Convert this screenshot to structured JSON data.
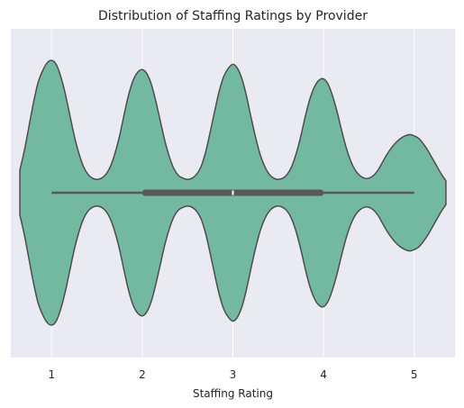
{
  "chart_data": {
    "type": "violin",
    "orientation": "horizontal",
    "title": "Distribution of Staffing Ratings by Provider",
    "xlabel": "Staffing Rating",
    "ylabel": "",
    "xticks": [
      1,
      2,
      3,
      4,
      5
    ],
    "xlim": [
      0.55,
      5.45
    ],
    "grid": true,
    "legend": "none",
    "series": [
      {
        "values_description_free": true,
        "min": 1,
        "q1": 2,
        "median": 3,
        "q3": 4,
        "max": 5,
        "density_profile": [
          [
            0.65,
            0.17
          ],
          [
            0.7,
            0.32
          ],
          [
            0.75,
            0.5
          ],
          [
            0.8,
            0.68
          ],
          [
            0.85,
            0.83
          ],
          [
            0.9,
            0.92
          ],
          [
            0.95,
            0.98
          ],
          [
            1.0,
            1.0
          ],
          [
            1.05,
            0.97
          ],
          [
            1.1,
            0.88
          ],
          [
            1.15,
            0.75
          ],
          [
            1.2,
            0.59
          ],
          [
            1.25,
            0.43
          ],
          [
            1.3,
            0.3
          ],
          [
            1.35,
            0.2
          ],
          [
            1.4,
            0.14
          ],
          [
            1.45,
            0.11
          ],
          [
            1.5,
            0.1
          ],
          [
            1.55,
            0.11
          ],
          [
            1.6,
            0.14
          ],
          [
            1.65,
            0.2
          ],
          [
            1.7,
            0.3
          ],
          [
            1.75,
            0.43
          ],
          [
            1.8,
            0.59
          ],
          [
            1.85,
            0.74
          ],
          [
            1.9,
            0.85
          ],
          [
            1.95,
            0.91
          ],
          [
            2.0,
            0.93
          ],
          [
            2.05,
            0.9
          ],
          [
            2.1,
            0.82
          ],
          [
            2.15,
            0.69
          ],
          [
            2.2,
            0.54
          ],
          [
            2.25,
            0.39
          ],
          [
            2.3,
            0.27
          ],
          [
            2.35,
            0.18
          ],
          [
            2.4,
            0.13
          ],
          [
            2.45,
            0.11
          ],
          [
            2.5,
            0.1
          ],
          [
            2.55,
            0.11
          ],
          [
            2.6,
            0.14
          ],
          [
            2.65,
            0.2
          ],
          [
            2.7,
            0.31
          ],
          [
            2.75,
            0.46
          ],
          [
            2.8,
            0.62
          ],
          [
            2.85,
            0.77
          ],
          [
            2.9,
            0.88
          ],
          [
            2.95,
            0.94
          ],
          [
            3.0,
            0.97
          ],
          [
            3.05,
            0.94
          ],
          [
            3.1,
            0.86
          ],
          [
            3.15,
            0.73
          ],
          [
            3.2,
            0.57
          ],
          [
            3.25,
            0.42
          ],
          [
            3.3,
            0.29
          ],
          [
            3.35,
            0.2
          ],
          [
            3.4,
            0.14
          ],
          [
            3.45,
            0.11
          ],
          [
            3.5,
            0.1
          ],
          [
            3.55,
            0.11
          ],
          [
            3.6,
            0.14
          ],
          [
            3.65,
            0.2
          ],
          [
            3.7,
            0.3
          ],
          [
            3.75,
            0.43
          ],
          [
            3.8,
            0.58
          ],
          [
            3.85,
            0.71
          ],
          [
            3.9,
            0.8
          ],
          [
            3.95,
            0.85
          ],
          [
            4.0,
            0.86
          ],
          [
            4.05,
            0.82
          ],
          [
            4.1,
            0.73
          ],
          [
            4.15,
            0.61
          ],
          [
            4.2,
            0.47
          ],
          [
            4.25,
            0.34
          ],
          [
            4.3,
            0.24
          ],
          [
            4.35,
            0.17
          ],
          [
            4.4,
            0.13
          ],
          [
            4.45,
            0.11
          ],
          [
            4.5,
            0.11
          ],
          [
            4.55,
            0.13
          ],
          [
            4.6,
            0.17
          ],
          [
            4.65,
            0.23
          ],
          [
            4.7,
            0.29
          ],
          [
            4.75,
            0.34
          ],
          [
            4.8,
            0.38
          ],
          [
            4.85,
            0.41
          ],
          [
            4.9,
            0.43
          ],
          [
            4.95,
            0.44
          ],
          [
            5.0,
            0.43
          ],
          [
            5.05,
            0.41
          ],
          [
            5.1,
            0.37
          ],
          [
            5.15,
            0.32
          ],
          [
            5.2,
            0.26
          ],
          [
            5.25,
            0.2
          ],
          [
            5.3,
            0.14
          ],
          [
            5.35,
            0.09
          ]
        ]
      }
    ],
    "colors": {
      "background": "#EAEAF2",
      "grid": "#FFFFFF",
      "violin_fill": "#73B8A1",
      "violin_edge": "#4D4D4D",
      "box": "#595959",
      "median": "#FFFFFF"
    }
  }
}
